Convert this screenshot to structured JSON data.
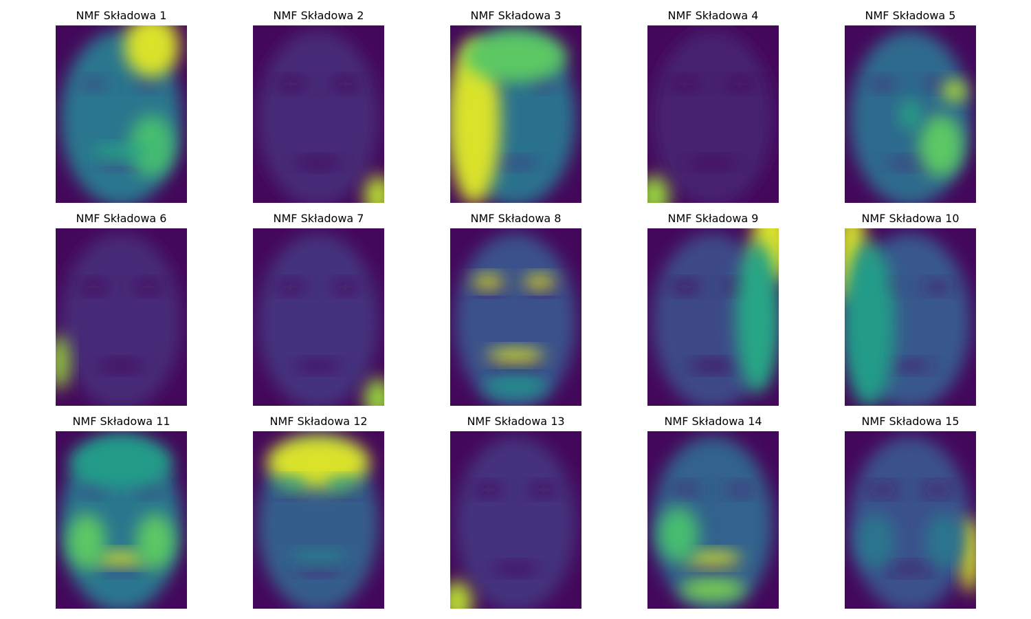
{
  "figure": {
    "colormap": "viridis",
    "colors": {
      "low": "#440154",
      "mid": "#21918c",
      "high": "#fde725"
    }
  },
  "chart_data": {
    "type": "heatmap",
    "grid": {
      "rows": 3,
      "cols": 5
    },
    "panels": [
      {
        "title": "NMF Składowa 1",
        "mean_level": 0.4,
        "hotspots": [
          [
            "forehead-right",
            0.95
          ],
          [
            "cheek-right",
            0.7
          ],
          [
            "mouth",
            0.6
          ]
        ]
      },
      {
        "title": "NMF Składowa 2",
        "mean_level": 0.12,
        "hotspots": [
          [
            "corner-bottom-right",
            0.9
          ]
        ]
      },
      {
        "title": "NMF Składowa 3",
        "mean_level": 0.38,
        "hotspots": [
          [
            "left-side",
            0.95
          ],
          [
            "forehead",
            0.75
          ]
        ]
      },
      {
        "title": "NMF Składowa 4",
        "mean_level": 0.1,
        "hotspots": [
          [
            "corner-bottom-left",
            0.85
          ]
        ]
      },
      {
        "title": "NMF Składowa 5",
        "mean_level": 0.35,
        "hotspots": [
          [
            "eye-right",
            0.9
          ],
          [
            "cheek-right",
            0.75
          ],
          [
            "nose",
            0.6
          ]
        ]
      },
      {
        "title": "NMF Składowa 6",
        "mean_level": 0.12,
        "hotspots": [
          [
            "edge-left-lower",
            0.85
          ]
        ]
      },
      {
        "title": "NMF Składowa 7",
        "mean_level": 0.15,
        "hotspots": [
          [
            "corner-bottom-right",
            0.85
          ]
        ]
      },
      {
        "title": "NMF Składowa 8",
        "mean_level": 0.25,
        "hotspots": [
          [
            "eyes",
            0.95
          ],
          [
            "mouth",
            0.95
          ],
          [
            "chin",
            0.5
          ]
        ]
      },
      {
        "title": "NMF Składowa 9",
        "mean_level": 0.22,
        "hotspots": [
          [
            "top-right",
            0.95
          ],
          [
            "right-side",
            0.6
          ]
        ]
      },
      {
        "title": "NMF Składowa 10",
        "mean_level": 0.28,
        "hotspots": [
          [
            "top-left",
            0.95
          ],
          [
            "left-side",
            0.55
          ]
        ]
      },
      {
        "title": "NMF Składowa 11",
        "mean_level": 0.4,
        "hotspots": [
          [
            "mouth",
            0.95
          ],
          [
            "cheeks",
            0.75
          ],
          [
            "forehead",
            0.55
          ]
        ]
      },
      {
        "title": "NMF Składowa 12",
        "mean_level": 0.3,
        "hotspots": [
          [
            "forehead",
            0.95
          ],
          [
            "eyes",
            0.6
          ],
          [
            "mouth",
            0.45
          ]
        ]
      },
      {
        "title": "NMF Składowa 13",
        "mean_level": 0.15,
        "hotspots": [
          [
            "corner-bottom-left",
            0.9
          ]
        ]
      },
      {
        "title": "NMF Składowa 14",
        "mean_level": 0.32,
        "hotspots": [
          [
            "mouth",
            0.95
          ],
          [
            "cheek-left",
            0.7
          ],
          [
            "chin",
            0.8
          ]
        ]
      },
      {
        "title": "NMF Składowa 15",
        "mean_level": 0.25,
        "hotspots": [
          [
            "right-edge",
            0.95
          ],
          [
            "cheeks",
            0.4
          ]
        ]
      }
    ]
  }
}
